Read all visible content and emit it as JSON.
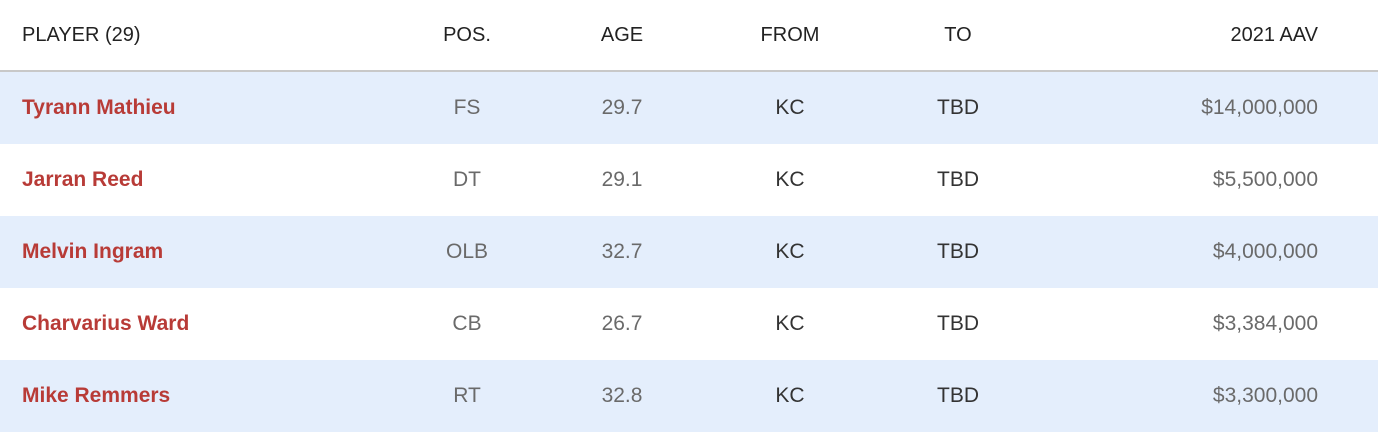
{
  "table": {
    "headers": [
      "PLAYER (29)",
      "POS.",
      "AGE",
      "FROM",
      "TO",
      "2021 AAV"
    ],
    "rows": [
      [
        "Tyrann Mathieu",
        "FS",
        "29.7",
        "KC",
        "TBD",
        "$14,000,000"
      ],
      [
        "Jarran Reed",
        "DT",
        "29.1",
        "KC",
        "TBD",
        "$5,500,000"
      ],
      [
        "Melvin Ingram",
        "OLB",
        "32.7",
        "KC",
        "TBD",
        "$4,000,000"
      ],
      [
        "Charvarius Ward",
        "CB",
        "26.7",
        "KC",
        "TBD",
        "$3,384,000"
      ],
      [
        "Mike Remmers",
        "RT",
        "32.8",
        "KC",
        "TBD",
        "$3,300,000"
      ]
    ]
  }
}
